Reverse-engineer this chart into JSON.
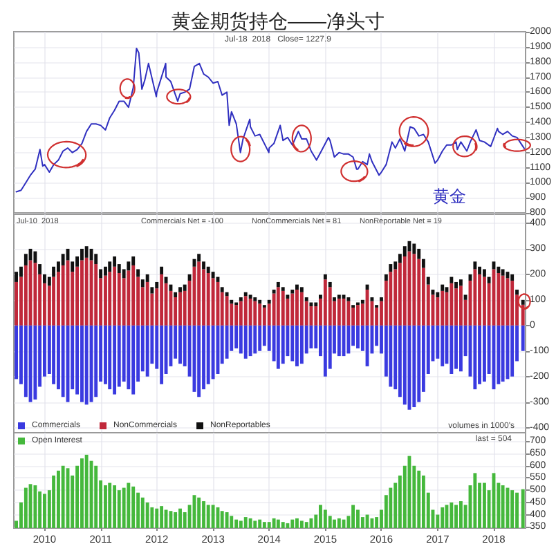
{
  "chart_data": [
    {
      "type": "line",
      "title": "黄金期货持仓——净头寸",
      "annotations": [
        "Jul-18  2018   Close= 1227.9"
      ],
      "xlim": [
        "2009-06-15",
        "2018-07-27"
      ],
      "xticks": [
        "2010",
        "2011",
        "2012",
        "2013",
        "2014",
        "2015",
        "2016",
        "2017",
        "2018"
      ],
      "ylim": [
        800,
        2000
      ],
      "yticks": [
        800,
        900,
        1000,
        1100,
        1200,
        1300,
        1400,
        1500,
        1600,
        1700,
        1800,
        1900,
        2000
      ],
      "tick_labels": "y",
      "grid": true,
      "legend": false,
      "series": [
        {
          "name": "黄金",
          "color": "#3030c0",
          "x": [
            "2009-07",
            "2009-08",
            "2009-09",
            "2009-10",
            "2009-11",
            "2009-12-02",
            "2009-12-20",
            "2010-01",
            "2010-02",
            "2010-03",
            "2010-04",
            "2010-05",
            "2010-06",
            "2010-07",
            "2010-08",
            "2010-09",
            "2010-10",
            "2010-11",
            "2010-12",
            "2011-01",
            "2011-02",
            "2011-03",
            "2011-04",
            "2011-05",
            "2011-06",
            "2011-07",
            "2011-08",
            "2011-08-22",
            "2011-09-06",
            "2011-09-26",
            "2011-10-15",
            "2011-11-08",
            "2011-12-29",
            "2012-01",
            "2012-02-28",
            "2012-03",
            "2012-04",
            "2012-05-16",
            "2012-06",
            "2012-07",
            "2012-08",
            "2012-09",
            "2012-10-04",
            "2012-11",
            "2012-12",
            "2013-01",
            "2013-02",
            "2013-03",
            "2013-04-01",
            "2013-04-16",
            "2013-05",
            "2013-06",
            "2013-06-28",
            "2013-07-15",
            "2013-08-28",
            "2013-09",
            "2013-10",
            "2013-11",
            "2013-12-30",
            "2014-01",
            "2014-02",
            "2014-03-14",
            "2014-04",
            "2014-05",
            "2014-06",
            "2014-07-10",
            "2014-08",
            "2014-09",
            "2014-10",
            "2014-11-05",
            "2014-12",
            "2015-01-22",
            "2015-02",
            "2015-03",
            "2015-04",
            "2015-05",
            "2015-06",
            "2015-07",
            "2015-07-24",
            "2015-08",
            "2015-09",
            "2015-10",
            "2015-10-15",
            "2015-11",
            "2015-12-17",
            "2016-01",
            "2016-02",
            "2016-03-10",
            "2016-04",
            "2016-05",
            "2016-06",
            "2016-07-06",
            "2016-08",
            "2016-09",
            "2016-10",
            "2016-11",
            "2016-12-15",
            "2017-01",
            "2017-02",
            "2017-03",
            "2017-04",
            "2017-05",
            "2017-05-09",
            "2017-06",
            "2017-07-10",
            "2017-08",
            "2017-09-08",
            "2017-10",
            "2017-11",
            "2017-12-12",
            "2018-01-25",
            "2018-02",
            "2018-03",
            "2018-04",
            "2018-05",
            "2018-06",
            "2018-07-18"
          ],
          "values": [
            940,
            950,
            1000,
            1050,
            1090,
            1220,
            1110,
            1120,
            1070,
            1120,
            1150,
            1210,
            1230,
            1200,
            1220,
            1260,
            1340,
            1390,
            1390,
            1380,
            1350,
            1430,
            1480,
            1540,
            1540,
            1500,
            1630,
            1890,
            1860,
            1620,
            1680,
            1790,
            1570,
            1600,
            1790,
            1700,
            1670,
            1540,
            1590,
            1600,
            1620,
            1770,
            1790,
            1720,
            1700,
            1660,
            1670,
            1580,
            1600,
            1380,
            1470,
            1390,
            1200,
            1290,
            1420,
            1370,
            1310,
            1320,
            1200,
            1230,
            1260,
            1380,
            1280,
            1300,
            1250,
            1340,
            1290,
            1290,
            1210,
            1150,
            1200,
            1300,
            1280,
            1170,
            1200,
            1190,
            1190,
            1170,
            1090,
            1090,
            1140,
            1120,
            1190,
            1140,
            1050,
            1070,
            1120,
            1270,
            1230,
            1290,
            1210,
            1370,
            1360,
            1310,
            1320,
            1270,
            1130,
            1150,
            1210,
            1250,
            1250,
            1270,
            1220,
            1270,
            1210,
            1270,
            1350,
            1280,
            1270,
            1240,
            1360,
            1340,
            1320,
            1340,
            1310,
            1300,
            1227.9
          ]
        }
      ]
    },
    {
      "type": "bar",
      "stacked": true,
      "annotations": [
        "Jul-10  2018",
        "Commercials Net = -100",
        "NonCommercials Net = 81",
        "NonReportable Net = 19"
      ],
      "x": [
        "2009-07",
        "2009-08",
        "2009-09",
        "2009-10",
        "2009-11",
        "2009-12",
        "2010-01",
        "2010-02",
        "2010-03",
        "2010-04",
        "2010-05",
        "2010-06",
        "2010-07",
        "2010-08",
        "2010-09",
        "2010-10",
        "2010-11",
        "2010-12",
        "2011-01",
        "2011-02",
        "2011-03",
        "2011-04",
        "2011-05",
        "2011-06",
        "2011-07",
        "2011-08",
        "2011-09",
        "2011-10",
        "2011-11",
        "2011-12",
        "2012-01",
        "2012-02",
        "2012-03",
        "2012-04",
        "2012-05",
        "2012-06",
        "2012-07",
        "2012-08",
        "2012-09",
        "2012-10",
        "2012-11",
        "2012-12",
        "2013-01",
        "2013-02",
        "2013-03",
        "2013-04",
        "2013-05",
        "2013-06",
        "2013-07",
        "2013-08",
        "2013-09",
        "2013-10",
        "2013-11",
        "2013-12",
        "2014-01",
        "2014-02",
        "2014-03",
        "2014-04",
        "2014-05",
        "2014-06",
        "2014-07",
        "2014-08",
        "2014-09",
        "2014-10",
        "2014-11",
        "2014-12",
        "2015-01",
        "2015-02",
        "2015-03",
        "2015-04",
        "2015-05",
        "2015-06",
        "2015-07",
        "2015-08",
        "2015-09",
        "2015-10",
        "2015-11",
        "2015-12",
        "2016-01",
        "2016-02",
        "2016-03",
        "2016-04",
        "2016-05",
        "2016-06",
        "2016-07",
        "2016-08",
        "2016-09",
        "2016-10",
        "2016-11",
        "2016-12",
        "2017-01",
        "2017-02",
        "2017-03",
        "2017-04",
        "2017-05",
        "2017-06",
        "2017-07",
        "2017-08",
        "2017-09",
        "2017-10",
        "2017-11",
        "2017-12",
        "2018-01",
        "2018-02",
        "2018-03",
        "2018-04",
        "2018-05",
        "2018-06",
        "2018-07-10"
      ],
      "xlim": [
        "2009-06-15",
        "2018-07-27"
      ],
      "xticks": [
        "2010",
        "2011",
        "2012",
        "2013",
        "2014",
        "2015",
        "2016",
        "2017",
        "2018"
      ],
      "ylim": [
        -420,
        435
      ],
      "yticks": [
        -400,
        -300,
        -200,
        -100,
        0,
        100,
        200,
        300,
        400
      ],
      "tick_labels": "y",
      "grid": true,
      "legend": "bottom left",
      "series": [
        {
          "name": "Commercials",
          "color": "#3a3ae0",
          "values": [
            -210,
            -230,
            -280,
            -300,
            -290,
            -240,
            -200,
            -190,
            -230,
            -250,
            -280,
            -300,
            -250,
            -270,
            -300,
            -310,
            -300,
            -280,
            -220,
            -230,
            -250,
            -270,
            -240,
            -220,
            -250,
            -270,
            -220,
            -180,
            -200,
            -150,
            -170,
            -230,
            -190,
            -160,
            -130,
            -150,
            -160,
            -200,
            -260,
            -280,
            -250,
            -230,
            -210,
            -190,
            -150,
            -130,
            -100,
            -90,
            -110,
            -130,
            -120,
            -110,
            -100,
            -80,
            -100,
            -140,
            -170,
            -150,
            -120,
            -140,
            -160,
            -150,
            -110,
            -90,
            -90,
            -120,
            -200,
            -170,
            -110,
            -120,
            -120,
            -110,
            -80,
            -90,
            -100,
            -160,
            -110,
            -80,
            -110,
            -200,
            -240,
            -250,
            -280,
            -310,
            -330,
            -320,
            -300,
            -260,
            -190,
            -140,
            -130,
            -160,
            -150,
            -190,
            -170,
            -180,
            -120,
            -200,
            -250,
            -230,
            -220,
            -190,
            -250,
            -230,
            -220,
            -210,
            -200,
            -140,
            -100
          ]
        },
        {
          "name": "NonCommercials",
          "color": "#c0283a",
          "values": [
            170,
            190,
            235,
            255,
            245,
            200,
            165,
            155,
            190,
            210,
            235,
            255,
            210,
            230,
            255,
            265,
            255,
            240,
            185,
            195,
            210,
            230,
            205,
            185,
            215,
            235,
            190,
            150,
            170,
            125,
            145,
            200,
            165,
            135,
            110,
            130,
            135,
            175,
            230,
            250,
            220,
            205,
            185,
            170,
            130,
            115,
            85,
            80,
            95,
            115,
            105,
            95,
            85,
            70,
            85,
            125,
            150,
            135,
            105,
            125,
            140,
            130,
            95,
            75,
            75,
            105,
            180,
            150,
            95,
            105,
            105,
            95,
            70,
            80,
            85,
            140,
            95,
            70,
            95,
            175,
            210,
            220,
            245,
            270,
            290,
            280,
            260,
            225,
            160,
            120,
            110,
            135,
            130,
            165,
            145,
            155,
            100,
            175,
            220,
            200,
            190,
            165,
            220,
            205,
            195,
            185,
            175,
            120,
            81
          ]
        },
        {
          "name": "NonReportables",
          "color": "#111111",
          "values": [
            40,
            40,
            45,
            45,
            45,
            40,
            35,
            35,
            40,
            40,
            45,
            45,
            40,
            40,
            45,
            45,
            45,
            40,
            35,
            35,
            40,
            40,
            35,
            35,
            35,
            35,
            30,
            30,
            30,
            25,
            25,
            30,
            25,
            25,
            20,
            20,
            25,
            25,
            30,
            30,
            30,
            25,
            25,
            20,
            20,
            15,
            15,
            10,
            15,
            15,
            15,
            15,
            15,
            10,
            15,
            15,
            20,
            15,
            15,
            15,
            20,
            20,
            15,
            15,
            15,
            15,
            20,
            20,
            15,
            15,
            15,
            15,
            10,
            10,
            15,
            20,
            15,
            10,
            15,
            25,
            30,
            30,
            35,
            40,
            40,
            40,
            40,
            35,
            30,
            20,
            20,
            25,
            20,
            25,
            25,
            25,
            20,
            25,
            30,
            30,
            30,
            25,
            30,
            25,
            25,
            25,
            25,
            20,
            19
          ]
        }
      ]
    },
    {
      "type": "bar",
      "annotations": [
        "volumes in 1000's",
        "last = 504"
      ],
      "x": [
        "2009-07",
        "2009-08",
        "2009-09",
        "2009-10",
        "2009-11",
        "2009-12",
        "2010-01",
        "2010-02",
        "2010-03",
        "2010-04",
        "2010-05",
        "2010-06",
        "2010-07",
        "2010-08",
        "2010-09",
        "2010-10",
        "2010-11",
        "2010-12",
        "2011-01",
        "2011-02",
        "2011-03",
        "2011-04",
        "2011-05",
        "2011-06",
        "2011-07",
        "2011-08",
        "2011-09",
        "2011-10",
        "2011-11",
        "2011-12",
        "2012-01",
        "2012-02",
        "2012-03",
        "2012-04",
        "2012-05",
        "2012-06",
        "2012-07",
        "2012-08",
        "2012-09",
        "2012-10",
        "2012-11",
        "2012-12",
        "2013-01",
        "2013-02",
        "2013-03",
        "2013-04",
        "2013-05",
        "2013-06",
        "2013-07",
        "2013-08",
        "2013-09",
        "2013-10",
        "2013-11",
        "2013-12",
        "2014-01",
        "2014-02",
        "2014-03",
        "2014-04",
        "2014-05",
        "2014-06",
        "2014-07",
        "2014-08",
        "2014-09",
        "2014-10",
        "2014-11",
        "2014-12",
        "2015-01",
        "2015-02",
        "2015-03",
        "2015-04",
        "2015-05",
        "2015-06",
        "2015-07",
        "2015-08",
        "2015-09",
        "2015-10",
        "2015-11",
        "2015-12",
        "2016-01",
        "2016-02",
        "2016-03",
        "2016-04",
        "2016-05",
        "2016-06",
        "2016-07",
        "2016-08",
        "2016-09",
        "2016-10",
        "2016-11",
        "2016-12",
        "2017-01",
        "2017-02",
        "2017-03",
        "2017-04",
        "2017-05",
        "2017-06",
        "2017-07",
        "2017-08",
        "2017-09",
        "2017-10",
        "2017-11",
        "2017-12",
        "2018-01",
        "2018-02",
        "2018-03",
        "2018-04",
        "2018-05",
        "2018-06",
        "2018-07-10"
      ],
      "xlim": [
        "2009-06-15",
        "2018-07-27"
      ],
      "xticks": [
        "2010",
        "2011",
        "2012",
        "2013",
        "2014",
        "2015",
        "2016",
        "2017",
        "2018"
      ],
      "ylim": [
        345,
        735
      ],
      "yticks": [
        350,
        400,
        450,
        500,
        550,
        600,
        650,
        700
      ],
      "grid": true,
      "legend": "top left",
      "series": [
        {
          "name": "Open Interest",
          "color": "#45b83c",
          "values": [
            375,
            450,
            510,
            525,
            520,
            495,
            485,
            500,
            560,
            580,
            600,
            590,
            560,
            600,
            630,
            645,
            620,
            600,
            540,
            520,
            530,
            520,
            500,
            510,
            530,
            515,
            490,
            470,
            450,
            430,
            425,
            435,
            420,
            415,
            410,
            425,
            410,
            440,
            480,
            470,
            455,
            440,
            440,
            430,
            415,
            410,
            395,
            380,
            375,
            390,
            385,
            375,
            380,
            370,
            370,
            385,
            380,
            370,
            365,
            380,
            385,
            375,
            370,
            385,
            400,
            440,
            420,
            395,
            380,
            385,
            380,
            395,
            440,
            420,
            390,
            400,
            385,
            390,
            420,
            480,
            510,
            530,
            560,
            600,
            640,
            600,
            580,
            560,
            490,
            420,
            400,
            430,
            440,
            450,
            440,
            455,
            440,
            520,
            570,
            530,
            530,
            500,
            570,
            530,
            520,
            510,
            500,
            490,
            504
          ]
        }
      ]
    }
  ]
}
